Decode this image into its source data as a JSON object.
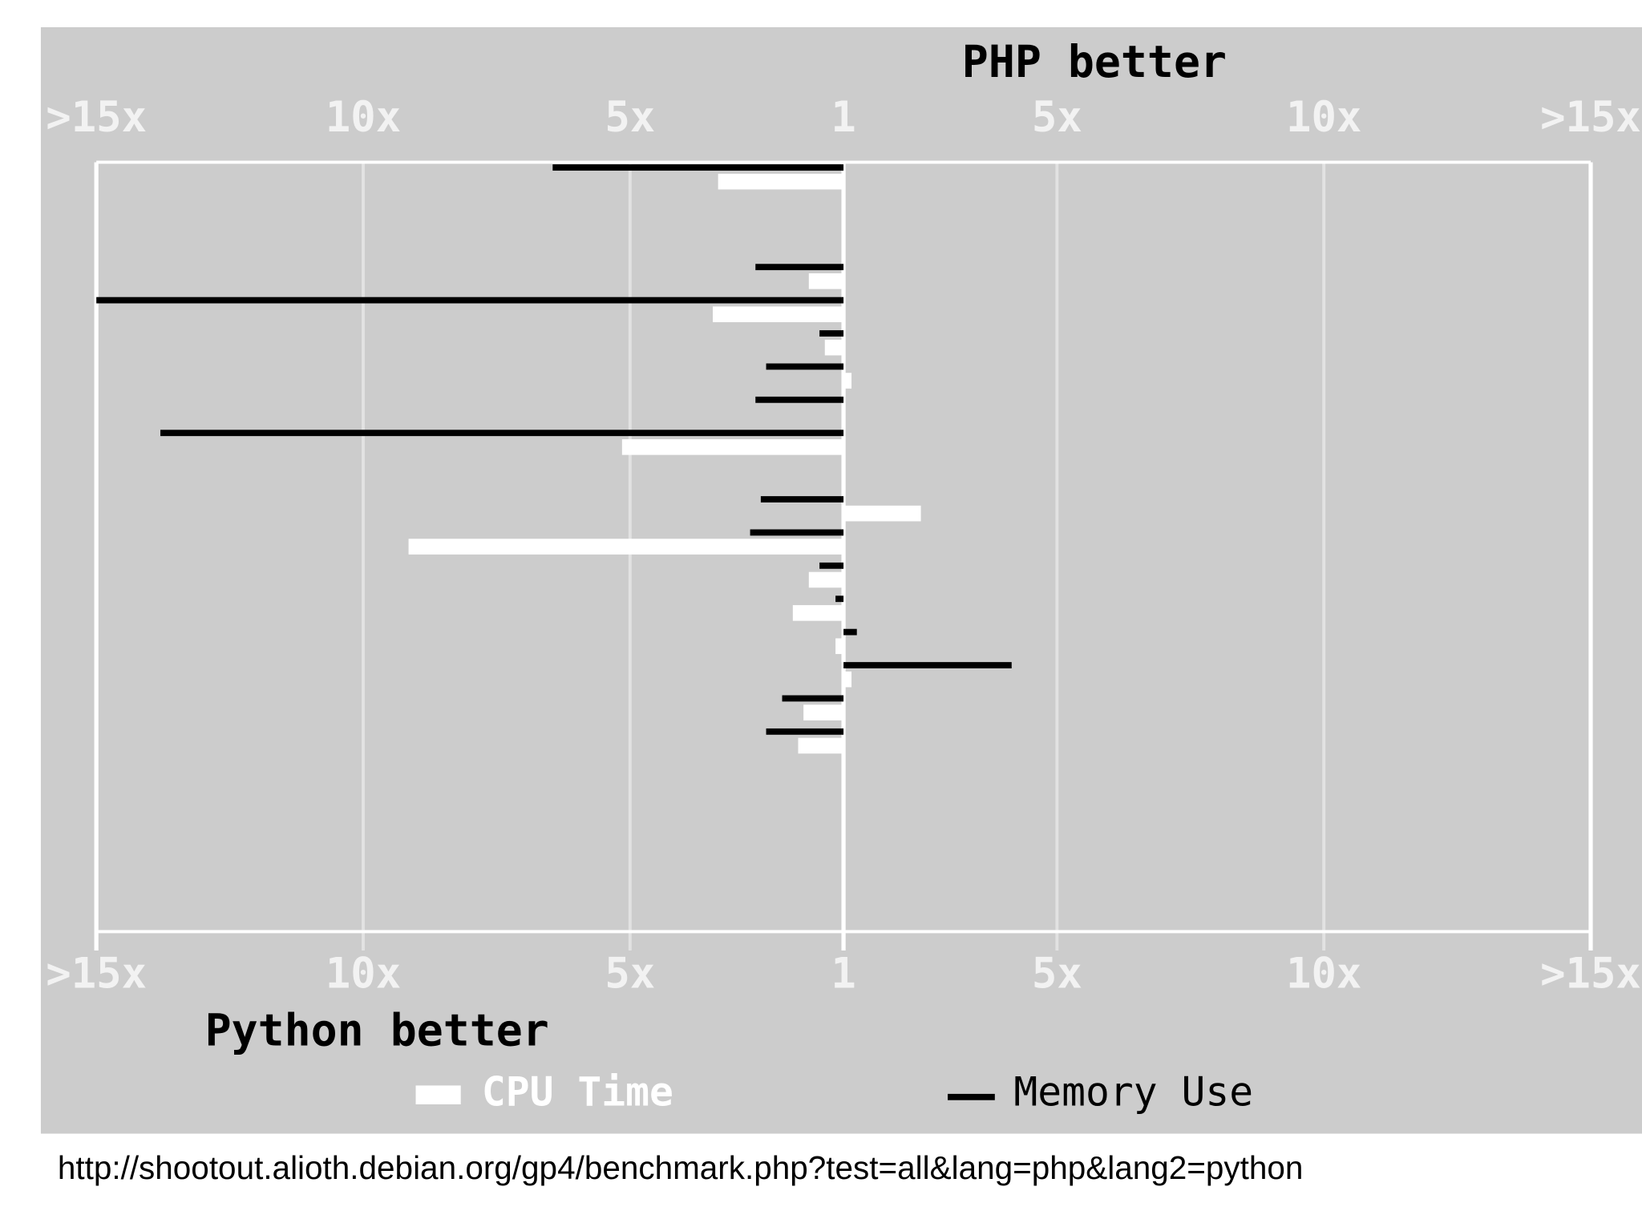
{
  "chart_data": {
    "type": "bar",
    "orientation": "horizontal",
    "annotations": [
      "PHP better",
      "Python better"
    ],
    "categories": [
      null,
      null,
      null,
      null,
      null,
      null,
      null,
      null,
      null,
      null,
      null,
      null,
      null,
      null,
      null,
      null,
      null,
      null,
      null,
      null,
      null,
      null,
      null
    ],
    "series": [
      {
        "name": "CPU Time",
        "color": "#ffffff",
        "values": [
          -2.35,
          null,
          null,
          -0.65,
          -2.45,
          -0.35,
          0.15,
          0,
          -4.15,
          null,
          1.45,
          -8.15,
          -0.65,
          -0.95,
          -0.15,
          0.15,
          -0.75,
          -0.85,
          null,
          null,
          null,
          null,
          null
        ]
      },
      {
        "name": "Memory Use",
        "color": "#000000",
        "values": [
          -5.45,
          null,
          null,
          -1.65,
          -14,
          -0.45,
          -1.45,
          -1.65,
          -12.8,
          null,
          -1.55,
          -1.75,
          -0.45,
          -0.15,
          0.25,
          3.15,
          -1.15,
          -1.45,
          null,
          null,
          null,
          null,
          null
        ]
      }
    ],
    "xlim": [
      -14,
      14
    ],
    "xticks": [
      {
        "value": -14,
        "label": ">15x"
      },
      {
        "value": -9,
        "label": "10x"
      },
      {
        "value": -4,
        "label": "5x"
      },
      {
        "value": 0,
        "label": "1"
      },
      {
        "value": 4,
        "label": "5x"
      },
      {
        "value": 9,
        "label": "10x"
      },
      {
        "value": 14,
        "label": ">15x"
      }
    ],
    "grid": true
  },
  "source": "http://shootout.alioth.debian.org/gp4/benchmark.php?test=all&lang=php&lang2=python"
}
